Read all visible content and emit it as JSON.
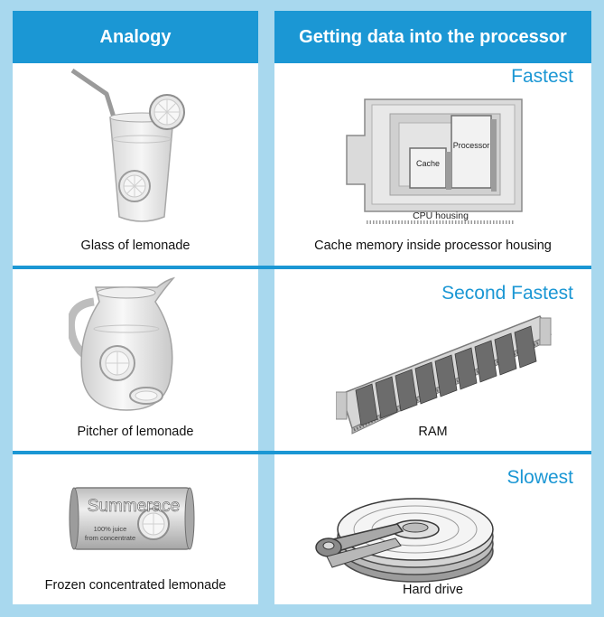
{
  "headers": {
    "analogy": "Analogy",
    "processor": "Getting data into the processor"
  },
  "rows": [
    {
      "speed": "Fastest",
      "analogy_caption": "Glass of lemonade",
      "hardware_caption": "Cache memory inside processor housing",
      "labels": {
        "cache": "Cache",
        "processor": "Processor",
        "housing": "CPU housing"
      }
    },
    {
      "speed": "Second Fastest",
      "analogy_caption": "Pitcher of lemonade",
      "hardware_caption": "RAM"
    },
    {
      "speed": "Slowest",
      "analogy_caption": "Frozen concentrated lemonade",
      "hardware_caption": "Hard drive",
      "labels": {
        "brand": "Summerace",
        "juice_line1": "100% juice",
        "juice_line2": "from concentrate"
      }
    }
  ],
  "colors": {
    "accent": "#1b97d4",
    "border": "#a8d8ee"
  }
}
